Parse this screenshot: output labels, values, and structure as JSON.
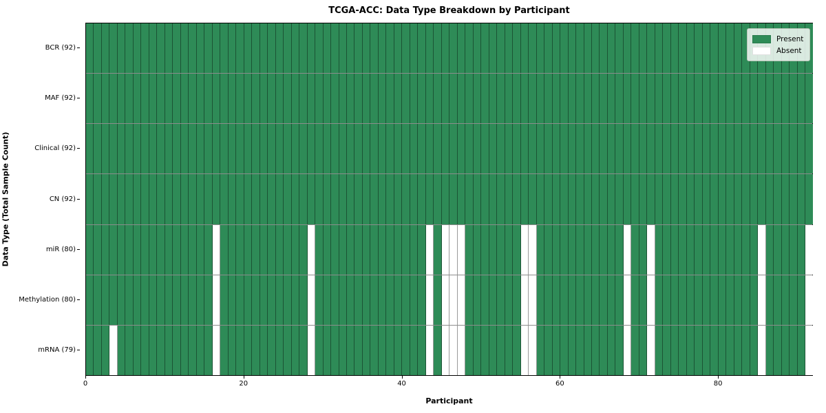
{
  "title": "TCGA-ACC: Data Type Breakdown by Participant",
  "chart_data": {
    "type": "heatmap",
    "title": "TCGA-ACC: Data Type Breakdown by Participant",
    "xlabel": "Participant",
    "ylabel": "Data Type (Total Sample Count)",
    "n_participants": 92,
    "x_ticks": [
      0,
      20,
      40,
      60,
      80
    ],
    "legend_position": "upper right",
    "grid": true,
    "legend": [
      {
        "label": "Present",
        "color": "#2e8b57"
      },
      {
        "label": "Absent",
        "color": "#ffffff"
      }
    ],
    "colors": {
      "present": "#2e8b57",
      "absent": "#ffffff"
    },
    "rows": [
      {
        "label": "BCR (92)",
        "data_type": "BCR",
        "present_count": 92,
        "absent_participants": []
      },
      {
        "label": "MAF (92)",
        "data_type": "MAF",
        "present_count": 92,
        "absent_participants": []
      },
      {
        "label": "Clinical (92)",
        "data_type": "Clinical",
        "present_count": 92,
        "absent_participants": []
      },
      {
        "label": "CN (92)",
        "data_type": "CN",
        "present_count": 92,
        "absent_participants": []
      },
      {
        "label": "miR (80)",
        "data_type": "miR",
        "present_count": 80,
        "absent_participants": [
          16,
          28,
          43,
          45,
          46,
          47,
          55,
          56,
          68,
          71,
          85,
          91
        ]
      },
      {
        "label": "Methylation (80)",
        "data_type": "Methylation",
        "present_count": 80,
        "absent_participants": [
          16,
          28,
          43,
          45,
          46,
          47,
          55,
          56,
          68,
          71,
          85,
          91
        ]
      },
      {
        "label": "mRNA (79)",
        "data_type": "mRNA",
        "present_count": 79,
        "absent_participants": [
          3,
          16,
          28,
          43,
          45,
          46,
          47,
          55,
          56,
          68,
          71,
          85,
          91
        ]
      }
    ]
  }
}
